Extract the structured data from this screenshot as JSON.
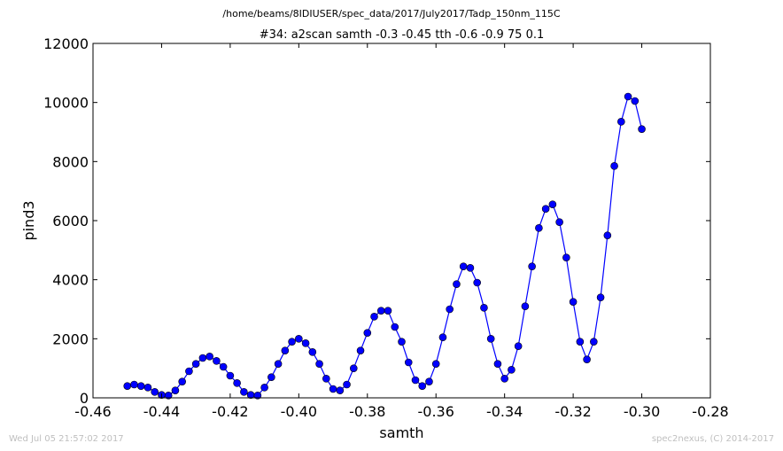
{
  "chart_data": {
    "type": "line",
    "suptitle": "/home/beams/8IDIUSER/spec_data/2017/July2017/Tadp_150nm_115C",
    "title": "#34: a2scan  samth -0.3 -0.45  tth -0.6 -0.9  75 0.1",
    "xlabel": "samth",
    "ylabel": "pind3",
    "xlim": [
      -0.46,
      -0.28
    ],
    "ylim": [
      0,
      12000
    ],
    "xticks": [
      "-0.46",
      "-0.44",
      "-0.42",
      "-0.40",
      "-0.38",
      "-0.36",
      "-0.34",
      "-0.32",
      "-0.30",
      "-0.28"
    ],
    "yticks": [
      "0",
      "2000",
      "4000",
      "6000",
      "8000",
      "10000",
      "12000"
    ],
    "grid": false,
    "legend": "none",
    "series": [
      {
        "color": "#0000ff",
        "marker": "circle",
        "x": [
          -0.45,
          -0.448,
          -0.446,
          -0.444,
          -0.442,
          -0.44,
          -0.438,
          -0.436,
          -0.434,
          -0.432,
          -0.43,
          -0.428,
          -0.426,
          -0.424,
          -0.422,
          -0.42,
          -0.418,
          -0.416,
          -0.414,
          -0.412,
          -0.41,
          -0.408,
          -0.406,
          -0.404,
          -0.402,
          -0.4,
          -0.398,
          -0.396,
          -0.394,
          -0.392,
          -0.39,
          -0.388,
          -0.386,
          -0.384,
          -0.382,
          -0.38,
          -0.378,
          -0.376,
          -0.374,
          -0.372,
          -0.37,
          -0.368,
          -0.366,
          -0.364,
          -0.362,
          -0.36,
          -0.358,
          -0.356,
          -0.354,
          -0.352,
          -0.35,
          -0.348,
          -0.346,
          -0.344,
          -0.342,
          -0.34,
          -0.338,
          -0.336,
          -0.334,
          -0.332,
          -0.33,
          -0.328,
          -0.326,
          -0.324,
          -0.322,
          -0.32,
          -0.318,
          -0.316,
          -0.314,
          -0.312,
          -0.31,
          -0.308,
          -0.306,
          -0.304,
          -0.302,
          -0.3
        ],
        "y": [
          400,
          450,
          400,
          350,
          200,
          100,
          80,
          250,
          550,
          900,
          1150,
          1350,
          1400,
          1250,
          1050,
          750,
          500,
          200,
          100,
          80,
          350,
          700,
          1150,
          1600,
          1900,
          2000,
          1850,
          1550,
          1150,
          650,
          300,
          250,
          450,
          1000,
          1600,
          2200,
          2750,
          2950,
          2950,
          2400,
          1900,
          1200,
          600,
          400,
          550,
          1150,
          2050,
          3000,
          3850,
          4450,
          4400,
          3900,
          3050,
          2000,
          1150,
          650,
          950,
          1750,
          3100,
          4450,
          5750,
          6400,
          6550,
          5950,
          4750,
          3250,
          1900,
          1300,
          1900,
          3400,
          5500,
          7850,
          9350,
          10200,
          10050,
          9100
        ]
      }
    ]
  },
  "footer": {
    "timestamp": "Wed Jul 05 21:57:02 2017",
    "credit": "spec2nexus, (C) 2014-2017"
  }
}
